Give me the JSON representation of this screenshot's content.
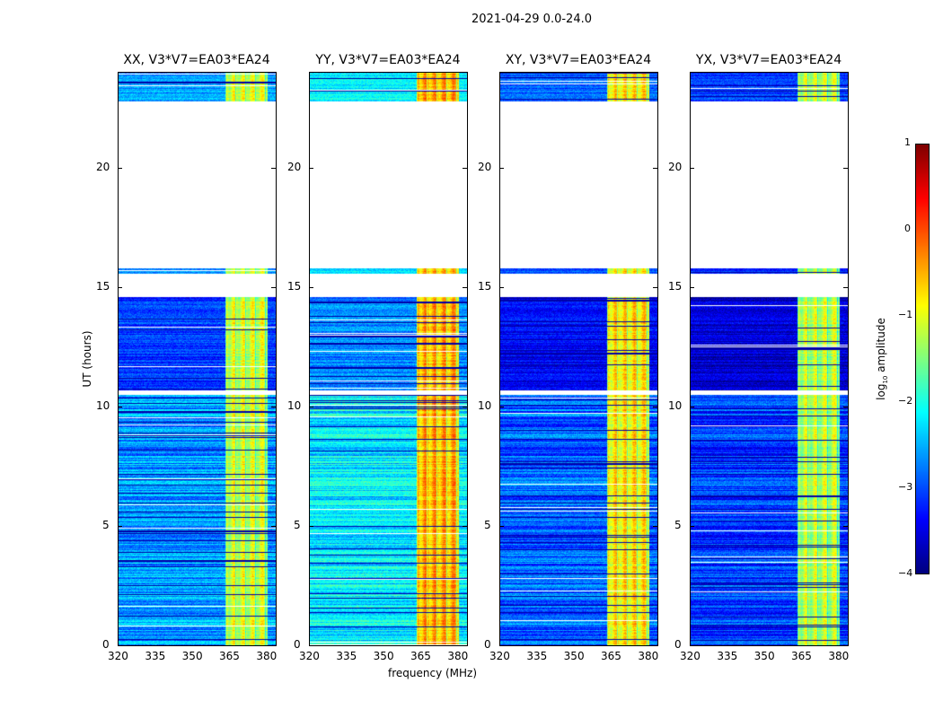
{
  "suptitle": "2021-04-29 0.0-24.0",
  "xlabel": "frequency (MHz)",
  "ylabel": "UT (hours)",
  "colorbar": {
    "label_main": "log",
    "label_sub": "10",
    "label_rest": " amplitude",
    "ticks": [
      "1",
      "0",
      "−1",
      "−2",
      "−3",
      "−4"
    ],
    "range": [
      -4,
      1
    ],
    "colormap": "jet"
  },
  "chart_data": {
    "type": "heatmap",
    "title": "2021-04-29 0.0-24.0",
    "xlabel": "frequency (MHz)",
    "ylabel": "UT (hours)",
    "xlim": [
      320,
      383.5
    ],
    "ylim": [
      0,
      24
    ],
    "xticks": [
      "320",
      "335",
      "350",
      "365",
      "380"
    ],
    "yticks": [
      "0",
      "5",
      "10",
      "15",
      "20"
    ],
    "observed_time_segments": [
      [
        0,
        10.5
      ],
      [
        10.7,
        14.6
      ],
      [
        15.6,
        15.8
      ],
      [
        22.8,
        24
      ]
    ],
    "rfi_band_mhz": [
      363,
      380
    ],
    "panels": [
      {
        "title": "XX, V3*V7=EA03*EA24",
        "base_log_amp": -2.6,
        "band_log_amp": -1.1
      },
      {
        "title": "YY, V3*V7=EA03*EA24",
        "base_log_amp": -2.2,
        "band_log_amp": -0.5
      },
      {
        "title": "XY, V3*V7=EA03*EA24",
        "base_log_amp": -2.9,
        "band_log_amp": -0.8
      },
      {
        "title": "YX, V3*V7=EA03*EA24",
        "base_log_amp": -3.1,
        "band_log_amp": -1.2
      }
    ]
  }
}
